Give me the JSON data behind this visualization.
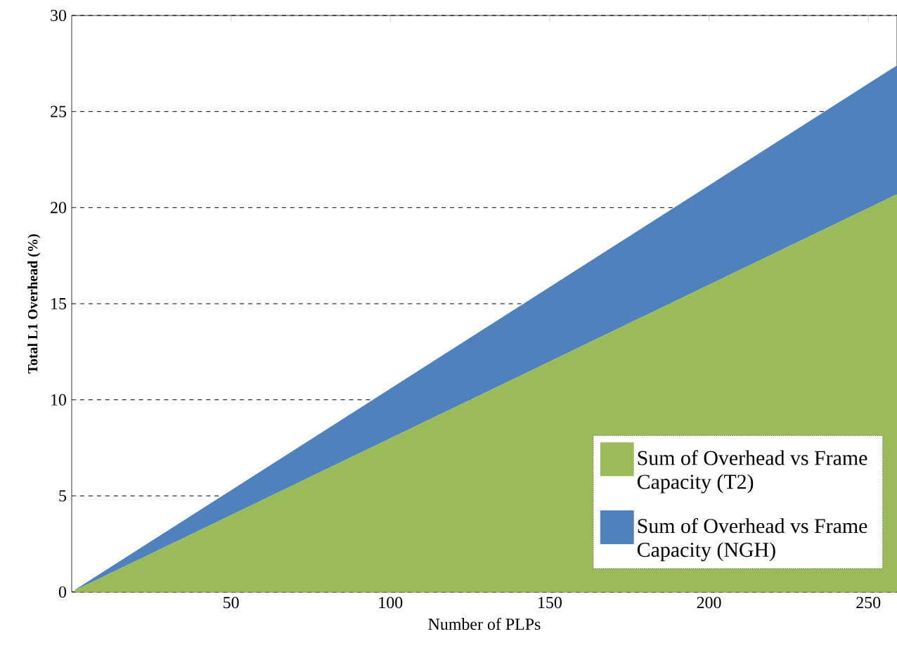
{
  "chart_data": {
    "type": "area",
    "stacked": true,
    "xlabel": "Number of PLPs",
    "ylabel": "Total L1 Overhead (%)",
    "x": [
      1,
      259
    ],
    "series": [
      {
        "name": "Sum of Overhead vs Frame Capacity (T2)",
        "color": "#9bbb59",
        "values": [
          0.08,
          20.7
        ]
      },
      {
        "name": "Sum of Overhead vs Frame Capacity (NGH)",
        "color": "#4f81bd",
        "values": [
          0.03,
          6.7
        ]
      }
    ],
    "xlim": [
      0,
      259
    ],
    "ylim": [
      0,
      30
    ],
    "xticks": [
      50,
      100,
      150,
      200,
      250
    ],
    "yticks": [
      0,
      5,
      10,
      15,
      20,
      25,
      30
    ],
    "grid": "y",
    "legend": "bottom right"
  }
}
